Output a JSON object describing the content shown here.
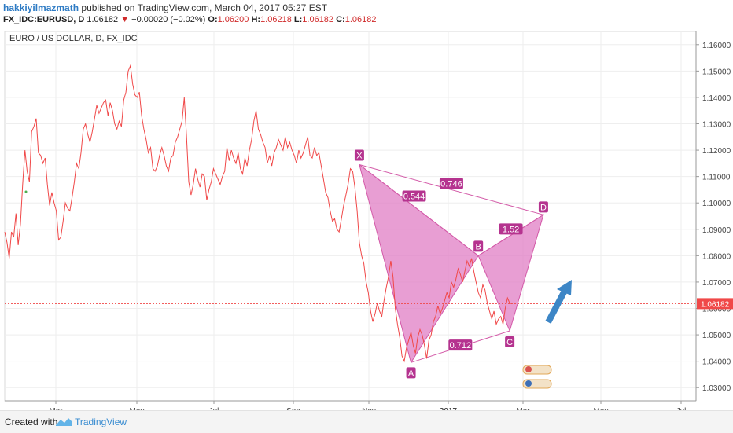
{
  "header": {
    "author": "hakkiyilmazmath",
    "published": "published on TradingView.com, March 04, 2017 05:27 EST",
    "symbol": "FX_IDC:EURUSD, D",
    "last": "1.06182",
    "change": "−0.00020 (−0.02%)",
    "open_label": "O:",
    "open": "1.06200",
    "high_label": "H:",
    "high": "1.06218",
    "low_label": "L:",
    "low": "1.06182",
    "close_label": "C:",
    "close": "1.06182"
  },
  "colors": {
    "price_line": "#f04848",
    "pattern_fill": "#e07ec4",
    "pattern_edge": "#d35aa8",
    "label_bg": "#b5338f",
    "arrow": "#3d86c6",
    "current_price": "#f04848"
  },
  "chart_data": {
    "type": "line",
    "title": "EURO / US DOLLAR, D, FX_IDC",
    "ylim": [
      1.025,
      1.165
    ],
    "yticks": [
      "1.16000",
      "1.15000",
      "1.14000",
      "1.13000",
      "1.12000",
      "1.11000",
      "1.10000",
      "1.09000",
      "1.08000",
      "1.07000",
      "1.06000",
      "1.05000",
      "1.04000",
      "1.03000"
    ],
    "xticks": [
      "Mar",
      "May",
      "Jul",
      "Sep",
      "Nov",
      "2017",
      "Mar",
      "May",
      "Jul"
    ],
    "current_price": {
      "value": 1.06182,
      "label": "1.06182"
    },
    "series": [
      {
        "values": [
          1.089,
          1.085,
          1.079,
          1.089,
          1.087,
          1.096,
          1.084,
          1.092,
          1.107,
          1.12,
          1.112,
          1.108,
          1.127,
          1.129,
          1.132,
          1.119,
          1.118,
          1.115,
          1.117,
          1.107,
          1.099,
          1.104,
          1.1,
          1.097,
          1.086,
          1.087,
          1.093,
          1.1,
          1.098,
          1.097,
          1.102,
          1.108,
          1.115,
          1.113,
          1.119,
          1.128,
          1.13,
          1.126,
          1.123,
          1.127,
          1.132,
          1.137,
          1.134,
          1.136,
          1.138,
          1.139,
          1.133,
          1.138,
          1.135,
          1.13,
          1.128,
          1.131,
          1.129,
          1.139,
          1.142,
          1.15,
          1.152,
          1.145,
          1.141,
          1.14,
          1.142,
          1.133,
          1.128,
          1.124,
          1.119,
          1.121,
          1.113,
          1.112,
          1.114,
          1.118,
          1.121,
          1.118,
          1.114,
          1.112,
          1.117,
          1.118,
          1.123,
          1.125,
          1.128,
          1.131,
          1.14,
          1.125,
          1.108,
          1.103,
          1.107,
          1.113,
          1.109,
          1.106,
          1.111,
          1.11,
          1.101,
          1.105,
          1.108,
          1.113,
          1.111,
          1.109,
          1.107,
          1.11,
          1.112,
          1.121,
          1.116,
          1.12,
          1.117,
          1.115,
          1.119,
          1.113,
          1.111,
          1.117,
          1.114,
          1.12,
          1.124,
          1.131,
          1.135,
          1.128,
          1.126,
          1.123,
          1.121,
          1.115,
          1.118,
          1.114,
          1.119,
          1.121,
          1.124,
          1.122,
          1.12,
          1.125,
          1.121,
          1.123,
          1.12,
          1.118,
          1.115,
          1.12,
          1.117,
          1.119,
          1.122,
          1.125,
          1.118,
          1.117,
          1.121,
          1.118,
          1.119,
          1.114,
          1.109,
          1.104,
          1.102,
          1.097,
          1.093,
          1.094,
          1.09,
          1.089,
          1.094,
          1.099,
          1.103,
          1.107,
          1.113,
          1.112,
          1.106,
          1.097,
          1.085,
          1.08,
          1.077,
          1.07,
          1.066,
          1.059,
          1.055,
          1.058,
          1.062,
          1.059,
          1.057,
          1.063,
          1.068,
          1.072,
          1.078,
          1.072,
          1.06,
          1.054,
          1.049,
          1.042,
          1.04,
          1.045,
          1.048,
          1.051,
          1.046,
          1.043,
          1.049,
          1.052,
          1.05,
          1.046,
          1.041,
          1.048,
          1.05,
          1.055,
          1.057,
          1.061,
          1.058,
          1.06,
          1.063,
          1.066,
          1.064,
          1.07,
          1.068,
          1.071,
          1.075,
          1.073,
          1.07,
          1.074,
          1.078,
          1.076,
          1.079,
          1.074,
          1.07,
          1.066,
          1.064,
          1.069,
          1.067,
          1.062,
          1.059,
          1.056,
          1.059,
          1.054,
          1.056,
          1.057,
          1.054,
          1.06,
          1.064,
          1.062,
          1.0618
        ]
      }
    ],
    "pattern": {
      "points": [
        {
          "label": "X",
          "index": 158,
          "value": 1.1145
        },
        {
          "label": "A",
          "index": 181,
          "value": 1.0395
        },
        {
          "label": "B",
          "index": 211,
          "value": 1.08
        },
        {
          "label": "C",
          "index": 225,
          "value": 1.0515
        },
        {
          "label": "D",
          "index": 240,
          "value": 1.0955
        }
      ],
      "ratios": [
        {
          "label": "0.544",
          "between": [
            "X",
            "B"
          ]
        },
        {
          "label": "0.746",
          "between": [
            "X",
            "D"
          ]
        },
        {
          "label": "1.52",
          "between": [
            "B",
            "D"
          ]
        },
        {
          "label": "0.712",
          "between": [
            "A",
            "C"
          ]
        }
      ]
    }
  },
  "footer": {
    "created": "Created with",
    "brand": "TradingView"
  }
}
